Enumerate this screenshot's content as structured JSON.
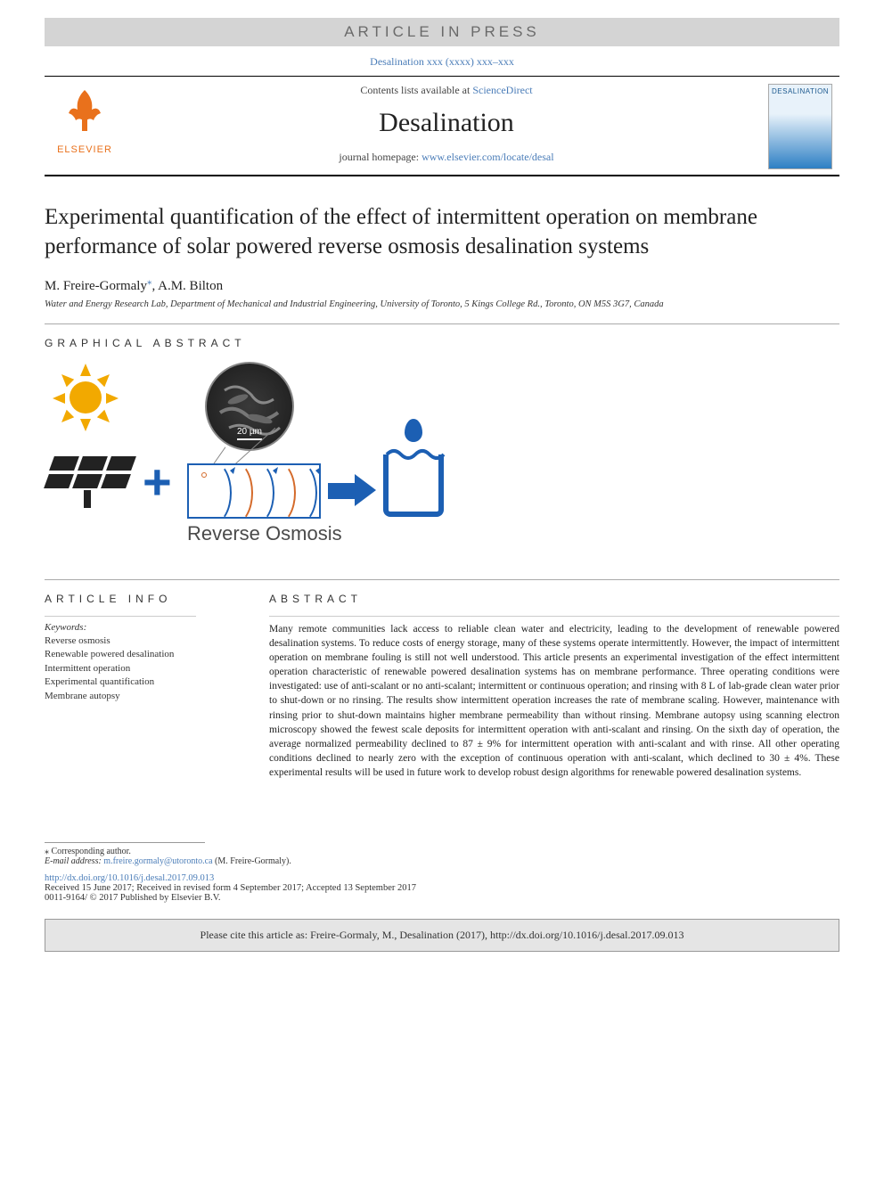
{
  "header": {
    "article_in_press": "ARTICLE IN PRESS",
    "journal_ref": "Desalination xxx (xxxx) xxx–xxx",
    "contents_prefix": "Contents lists available at ",
    "contents_link": "ScienceDirect",
    "journal_title": "Desalination",
    "homepage_prefix": "journal homepage: ",
    "homepage_link": "www.elsevier.com/locate/desal",
    "publisher_name": "ELSEVIER",
    "cover_title": "DESALINATION"
  },
  "article": {
    "title": "Experimental quantification of the effect of intermittent operation on membrane performance of solar powered reverse osmosis desalination systems",
    "authors": "M. Freire-Gormaly",
    "corr_marker": "⁎",
    "authors2": ", A.M. Bilton",
    "affiliation": "Water and Energy Research Lab, Department of Mechanical and Industrial Engineering, University of Toronto, 5 Kings College Rd., Toronto, ON M5S 3G7, Canada"
  },
  "sections": {
    "graphical_abstract": "GRAPHICAL ABSTRACT",
    "article_info": "ARTICLE INFO",
    "abstract": "ABSTRACT"
  },
  "graphical_abstract": {
    "ro_label": "Reverse Osmosis",
    "sem_scale": "20 µm",
    "colors": {
      "sun": "#f2a900",
      "panel": "#222222",
      "primary": "#1c5fb3",
      "ro_curve_through": "#1c5fb3",
      "ro_curve_block": "#d46a2a"
    }
  },
  "keywords": {
    "header": "Keywords:",
    "items": [
      "Reverse osmosis",
      "Renewable powered desalination",
      "Intermittent operation",
      "Experimental quantification",
      "Membrane autopsy"
    ]
  },
  "abstract_text": "Many remote communities lack access to reliable clean water and electricity, leading to the development of renewable powered desalination systems. To reduce costs of energy storage, many of these systems operate intermittently. However, the impact of intermittent operation on membrane fouling is still not well understood. This article presents an experimental investigation of the effect intermittent operation characteristic of renewable powered desalination systems has on membrane performance. Three operating conditions were investigated: use of anti-scalant or no anti-scalant; intermittent or continuous operation; and rinsing with 8 L of lab-grade clean water prior to shut-down or no rinsing. The results show intermittent operation increases the rate of membrane scaling. However, maintenance with rinsing prior to shut-down maintains higher membrane permeability than without rinsing. Membrane autopsy using scanning electron microscopy showed the fewest scale deposits for intermittent operation with anti-scalant and rinsing. On the sixth day of operation, the average normalized permeability declined to 87 ± 9% for intermittent operation with anti-scalant and with rinse. All other operating conditions declined to nearly zero with the exception of continuous operation with anti-scalant, which declined to 30 ± 4%. These experimental results will be used in future work to develop robust design algorithms for renewable powered desalination systems.",
  "footer": {
    "corr_label": "⁎ Corresponding author.",
    "email_label": "E-mail address: ",
    "email": "m.freire.gormaly@utoronto.ca",
    "email_suffix": " (M. Freire-Gormaly).",
    "doi": "http://dx.doi.org/10.1016/j.desal.2017.09.013",
    "history": "Received 15 June 2017; Received in revised form 4 September 2017; Accepted 13 September 2017",
    "copyright": "0011-9164/ © 2017 Published by Elsevier B.V.",
    "cite": "Please cite this article as: Freire-Gormaly, M., Desalination (2017), http://dx.doi.org/10.1016/j.desal.2017.09.013"
  },
  "style": {
    "link_color": "#4b7db8",
    "accent_color": "#e9711c",
    "rule_color": "#000000",
    "light_rule": "#aaaaaa",
    "grey_bg": "#d4d4d4",
    "cite_bg": "#e5e5e5",
    "body_font": "Georgia, serif",
    "title_fontsize": 25,
    "journal_title_fontsize": 30,
    "abstract_fontsize": 11.5
  }
}
